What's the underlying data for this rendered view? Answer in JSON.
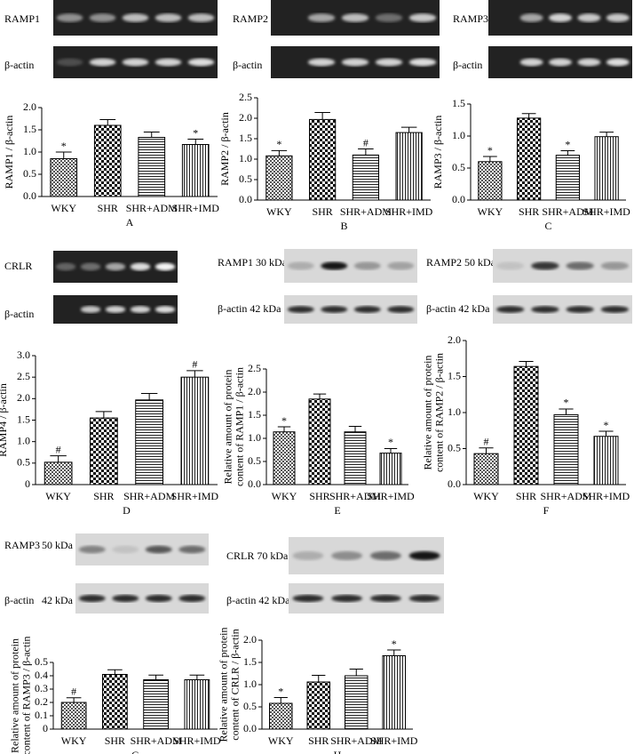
{
  "chart_data": [
    {
      "type": "bar",
      "ylabel": [
        "RAMP1 / β-actin"
      ],
      "xlabel": "A",
      "categories": [
        "WKY",
        "SHR",
        "SHR+ADM",
        "SHR+IMD"
      ],
      "values": [
        0.85,
        1.6,
        1.33,
        1.17
      ],
      "errors": [
        0.15,
        0.13,
        0.12,
        0.12
      ],
      "markers": [
        "*",
        null,
        null,
        "*"
      ],
      "ylim": [
        0,
        2
      ],
      "yticks": [
        {
          "value": 0,
          "label": "0.0"
        },
        0.5,
        {
          "value": 1,
          "label": "1.0"
        },
        1.5,
        {
          "value": 2,
          "label": "2.0"
        }
      ]
    },
    {
      "type": "bar",
      "ylabel": [
        "RAMP2 / β-actin"
      ],
      "xlabel": "B",
      "categories": [
        "WKY",
        "SHR",
        "SHR+ADM",
        "SHR+IMD"
      ],
      "values": [
        1.08,
        1.97,
        1.1,
        1.65
      ],
      "errors": [
        0.13,
        0.17,
        0.15,
        0.13
      ],
      "markers": [
        "*",
        null,
        "#",
        null
      ],
      "ylim": [
        0,
        2.5
      ],
      "yticks": [
        {
          "value": 0,
          "label": "0.0"
        },
        0.5,
        {
          "value": 1,
          "label": "1.0"
        },
        1.5,
        {
          "value": 2,
          "label": "2.0"
        },
        2.5
      ]
    },
    {
      "type": "bar",
      "ylabel": [
        "RAMP3 / β-actin"
      ],
      "xlabel": "C",
      "categories": [
        "WKY",
        "SHR",
        "SHR+ADM",
        "SHR+IMD"
      ],
      "values": [
        0.6,
        1.28,
        0.7,
        0.99
      ],
      "errors": [
        0.08,
        0.07,
        0.07,
        0.07
      ],
      "markers": [
        "*",
        null,
        "*",
        null
      ],
      "ylim": [
        0,
        1.5
      ],
      "yticks": [
        {
          "value": 0,
          "label": "0.0"
        },
        0.5,
        {
          "value": 1,
          "label": "1.0"
        },
        1.5
      ]
    },
    {
      "type": "bar",
      "ylabel": [
        "RAMP4 / β-actin"
      ],
      "xlabel": "D",
      "categories": [
        "WKY",
        "SHR",
        "SHR+ADM",
        "SHR+IMD"
      ],
      "values": [
        0.52,
        1.55,
        1.97,
        2.5
      ],
      "errors": [
        0.15,
        0.15,
        0.15,
        0.15
      ],
      "markers": [
        "#",
        null,
        null,
        "#"
      ],
      "ylim": [
        0,
        3
      ],
      "yticks": [
        0,
        0.5,
        {
          "value": 1,
          "label": "1.0"
        },
        1.5,
        {
          "value": 2,
          "label": "2.0"
        },
        2.5,
        {
          "value": 3,
          "label": "3.0"
        }
      ]
    },
    {
      "type": "bar",
      "ylabel": [
        "Relative amount of protein",
        "content of RAMP1 / β-actin"
      ],
      "xlabel": "E",
      "categories": [
        "WKY",
        "SHR",
        "SHR+ADM",
        "SHR+IMD"
      ],
      "values": [
        1.14,
        1.85,
        1.14,
        0.68
      ],
      "errors": [
        0.11,
        0.11,
        0.12,
        0.1
      ],
      "markers": [
        "*",
        null,
        null,
        "*"
      ],
      "ylim": [
        0,
        2.5
      ],
      "yticks": [
        {
          "value": 0,
          "label": "0.0"
        },
        0.5,
        {
          "value": 1,
          "label": "1.0"
        },
        1.5,
        {
          "value": 2,
          "label": "2.0"
        },
        2.5
      ]
    },
    {
      "type": "bar",
      "ylabel": [
        "Relative amount of protein",
        "content of RAMP2 / β-actin"
      ],
      "xlabel": "F",
      "categories": [
        "WKY",
        "SHR",
        "SHR+ADM",
        "SHR+IMD"
      ],
      "values": [
        0.43,
        1.64,
        0.97,
        0.67
      ],
      "errors": [
        0.08,
        0.07,
        0.08,
        0.07
      ],
      "markers": [
        "#",
        null,
        "*",
        "*"
      ],
      "ylim": [
        0,
        2
      ],
      "yticks": [
        {
          "value": 0,
          "label": "0.0"
        },
        0.5,
        {
          "value": 1,
          "label": "1.0"
        },
        1.5,
        {
          "value": 2,
          "label": "2.0"
        }
      ]
    },
    {
      "type": "bar",
      "ylabel": [
        "Relative amount of protein",
        "content of RAMP3 / β-actin"
      ],
      "xlabel": "G",
      "categories": [
        "WKY",
        "SHR",
        "SHR+ADM",
        "SHR+IMD"
      ],
      "values": [
        0.2,
        0.41,
        0.37,
        0.37
      ],
      "errors": [
        0.035,
        0.035,
        0.035,
        0.035
      ],
      "markers": [
        "#",
        null,
        null,
        null
      ],
      "ylim": [
        0,
        0.5
      ],
      "yticks": [
        0,
        0.1,
        0.2,
        0.3,
        0.4,
        0.5
      ]
    },
    {
      "type": "bar",
      "ylabel": [
        "Relative amount of protein",
        "content of CRLR / β-actin"
      ],
      "xlabel": "H",
      "categories": [
        "WKY",
        "SHR",
        "SHR+ADM",
        "SHR+IMD"
      ],
      "values": [
        0.58,
        1.06,
        1.2,
        1.65
      ],
      "errors": [
        0.13,
        0.15,
        0.15,
        0.13
      ],
      "markers": [
        "*",
        null,
        null,
        "*"
      ],
      "ylim": [
        0,
        2
      ],
      "yticks": [
        {
          "value": 0,
          "label": "0.0"
        },
        0.5,
        {
          "value": 1,
          "label": "1.0"
        },
        1.5,
        {
          "value": 2,
          "label": "2.0"
        }
      ]
    }
  ],
  "blots": [
    {
      "label": "RAMP1"
    },
    {
      "label": "β-actin"
    },
    {
      "label": "RAMP2"
    },
    {
      "label": "β-actin"
    },
    {
      "label": "RAMP3"
    },
    {
      "label": "β-actin"
    },
    {
      "label": "CRLR"
    },
    {
      "label": "β-actin"
    },
    {
      "label": "RAMP1 30 kDa"
    },
    {
      "label": "β-actin 42 kDa"
    },
    {
      "label": "RAMP2 50 kDa"
    },
    {
      "label": "β-actin 42 kDa"
    },
    {
      "label": "RAMP3",
      "size": "50 kDa"
    },
    {
      "label": "β-actin",
      "size": "42 kDa"
    },
    {
      "label": "CRLR 70 kDa"
    },
    {
      "label": "β-actin 42 kDa"
    }
  ]
}
